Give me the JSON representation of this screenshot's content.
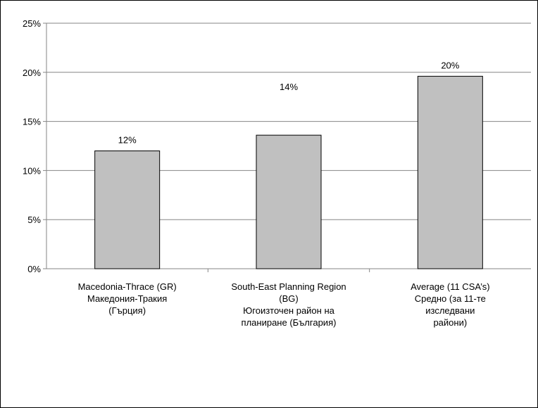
{
  "chart_data": {
    "type": "bar",
    "categories": [
      [
        "Macedonia-Thrace (GR)",
        "Македония-Тракия",
        "(Гърция)"
      ],
      [
        "South-East Planning Region",
        "(BG)",
        "Югоизточен район на",
        "планиране (България)"
      ],
      [
        "Average (11 CSA’s)",
        "Средно (за 11-те",
        "изследвани",
        "райони)"
      ]
    ],
    "values": [
      12,
      13.6,
      19.6
    ],
    "data_labels": [
      "12%",
      "14%",
      "20%"
    ],
    "y_ticks": [
      "0%",
      "5%",
      "10%",
      "15%",
      "20%",
      "25%"
    ],
    "ylim": [
      0,
      25
    ],
    "y_step": 5,
    "title": "",
    "xlabel": "",
    "ylabel": "",
    "grid": true,
    "legend": false,
    "colors": {
      "bar_fill": "#c0c0c0",
      "bar_stroke": "#000000",
      "grid": "#868686",
      "axis": "#868686"
    }
  }
}
